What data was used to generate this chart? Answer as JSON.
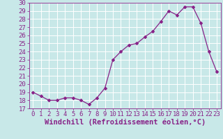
{
  "x": [
    0,
    1,
    2,
    3,
    4,
    5,
    6,
    7,
    8,
    9,
    10,
    11,
    12,
    13,
    14,
    15,
    16,
    17,
    18,
    19,
    20,
    21,
    22,
    23
  ],
  "y": [
    19.0,
    18.5,
    18.0,
    18.0,
    18.3,
    18.3,
    18.0,
    17.5,
    18.3,
    19.5,
    23.0,
    24.0,
    24.8,
    25.0,
    25.8,
    26.5,
    27.7,
    29.0,
    28.5,
    29.5,
    29.5,
    27.5,
    24.0,
    21.5
  ],
  "line_color": "#882288",
  "marker_color": "#882288",
  "bg_color": "#c8e8e8",
  "grid_color": "#ffffff",
  "xlabel": "Windchill (Refroidissement éolien,°C)",
  "ylim": [
    17,
    30
  ],
  "xlim_min": -0.5,
  "xlim_max": 23.5,
  "yticks": [
    17,
    18,
    19,
    20,
    21,
    22,
    23,
    24,
    25,
    26,
    27,
    28,
    29,
    30
  ],
  "xticks": [
    0,
    1,
    2,
    3,
    4,
    5,
    6,
    7,
    8,
    9,
    10,
    11,
    12,
    13,
    14,
    15,
    16,
    17,
    18,
    19,
    20,
    21,
    22,
    23
  ],
  "tick_color": "#882288",
  "xlabel_color": "#882288",
  "tick_fontsize": 6.5,
  "xlabel_fontsize": 7.5
}
